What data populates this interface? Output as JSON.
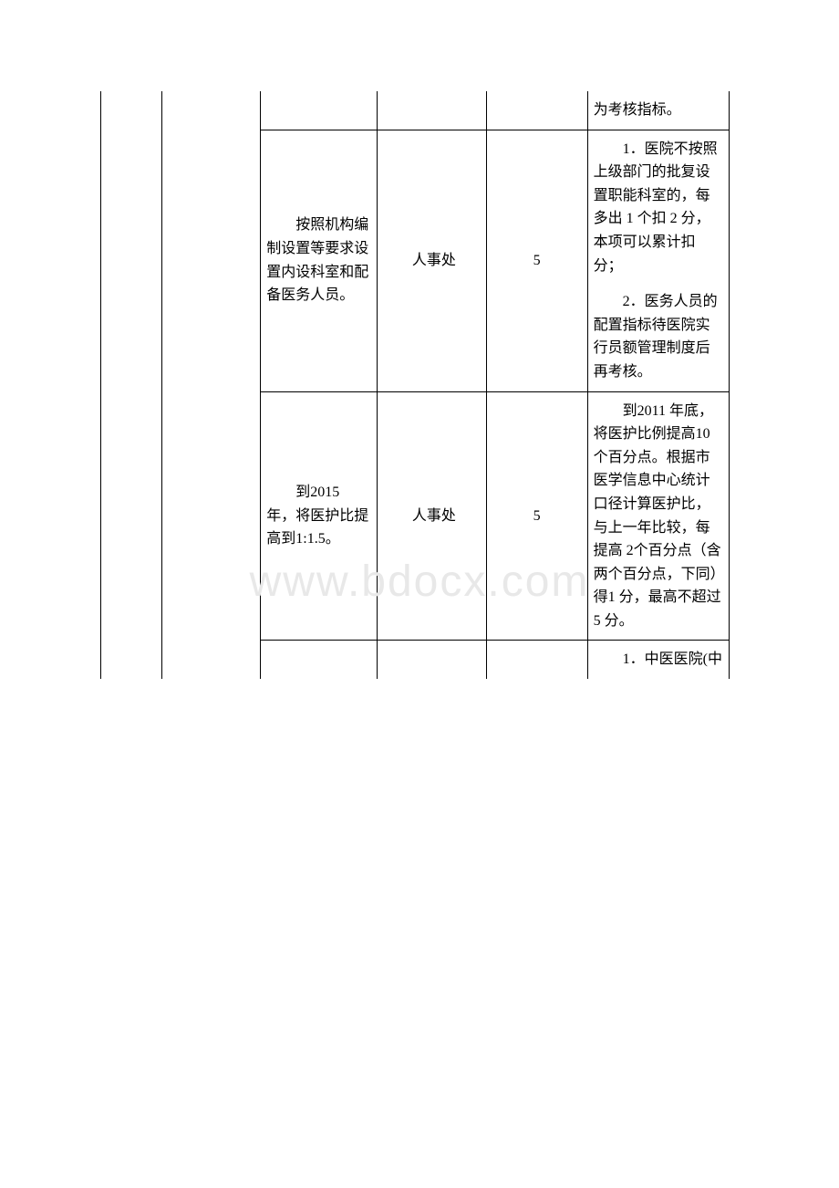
{
  "watermark": "www.bdocx.com",
  "table": {
    "rows": [
      {
        "col3": "",
        "col4": "",
        "col5": "",
        "col6": "为考核指标。"
      },
      {
        "col3": "按照机构编制设置等要求设置内设科室和配备医务人员。",
        "col4": "人事处",
        "col5": "5",
        "col6_p1": "1．医院不按照上级部门的批复设置职能科室的，每多出 1 个扣 2 分，本项可以累计扣分；",
        "col6_p2": "2．医务人员的配置指标待医院实行员额管理制度后再考核。"
      },
      {
        "col3": "到2015 年，将医护比提高到1:1.5。",
        "col4": "人事处",
        "col5": "5",
        "col6": "到2011 年底，将医护比例提高10 个百分点。根据市医学信息中心统计口径计算医护比，与上一年比较，每提高 2个百分点（含两个百分点，下同）得1 分，最高不超过5 分。"
      },
      {
        "col3": "",
        "col4": "",
        "col5": "",
        "col6": "1．中医医院(中"
      }
    ]
  }
}
